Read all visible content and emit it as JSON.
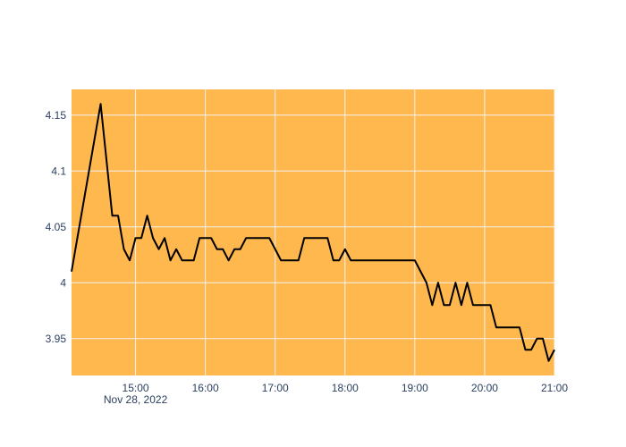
{
  "chart_data": {
    "type": "line",
    "title": "",
    "xlabel": "",
    "ylabel": "",
    "x_axis": {
      "type": "time",
      "range": [
        "2022-11-28 14:05",
        "2022-11-28 21:00"
      ],
      "ticks": [
        {
          "at": "15:00",
          "label": "15:00",
          "sublabel": "Nov 28, 2022"
        },
        {
          "at": "16:00",
          "label": "16:00"
        },
        {
          "at": "17:00",
          "label": "17:00"
        },
        {
          "at": "18:00",
          "label": "18:00"
        },
        {
          "at": "19:00",
          "label": "19:00"
        },
        {
          "at": "20:00",
          "label": "20:00"
        },
        {
          "at": "21:00",
          "label": "21:00"
        }
      ]
    },
    "y_axis": {
      "range": [
        3.917,
        4.173
      ],
      "ticks": [
        {
          "value": 3.95,
          "label": "3.95"
        },
        {
          "value": 4.0,
          "label": "4"
        },
        {
          "value": 4.05,
          "label": "4.05"
        },
        {
          "value": 4.1,
          "label": "4.1"
        },
        {
          "value": 4.15,
          "label": "4.15"
        }
      ]
    },
    "grid": true,
    "legend": "none",
    "colors": {
      "plot_background": "#ffb84d",
      "grid": "#f3f3f3",
      "line": "#000000",
      "axis_text": "#2a3f5f"
    },
    "series": [
      {
        "x": [
          "14:05",
          "14:30",
          "14:40",
          "14:45",
          "14:50",
          "14:55",
          "15:00",
          "15:05",
          "15:10",
          "15:15",
          "15:20",
          "15:25",
          "15:30",
          "15:35",
          "15:40",
          "15:45",
          "15:50",
          "15:55",
          "16:00",
          "16:05",
          "16:10",
          "16:15",
          "16:20",
          "16:25",
          "16:30",
          "16:35",
          "16:40",
          "16:45",
          "16:50",
          "16:55",
          "17:00",
          "17:05",
          "17:10",
          "17:15",
          "17:20",
          "17:25",
          "17:30",
          "17:35",
          "17:40",
          "17:45",
          "17:50",
          "17:55",
          "18:00",
          "18:05",
          "18:10",
          "18:15",
          "18:20",
          "18:25",
          "18:30",
          "18:35",
          "18:40",
          "18:45",
          "18:50",
          "18:55",
          "19:00",
          "19:05",
          "19:10",
          "19:15",
          "19:20",
          "19:25",
          "19:30",
          "19:35",
          "19:40",
          "19:45",
          "19:50",
          "19:55",
          "20:00",
          "20:05",
          "20:10",
          "20:15",
          "20:20",
          "20:25",
          "20:30",
          "20:35",
          "20:40",
          "20:45",
          "20:50",
          "20:55",
          "21:00"
        ],
        "y": [
          4.01,
          4.16,
          4.06,
          4.06,
          4.03,
          4.02,
          4.04,
          4.04,
          4.06,
          4.04,
          4.03,
          4.04,
          4.02,
          4.03,
          4.02,
          4.02,
          4.02,
          4.04,
          4.04,
          4.04,
          4.03,
          4.03,
          4.02,
          4.03,
          4.03,
          4.04,
          4.04,
          4.04,
          4.04,
          4.04,
          4.03,
          4.02,
          4.02,
          4.02,
          4.02,
          4.04,
          4.04,
          4.04,
          4.04,
          4.04,
          4.02,
          4.02,
          4.03,
          4.02,
          4.02,
          4.02,
          4.02,
          4.02,
          4.02,
          4.02,
          4.02,
          4.02,
          4.02,
          4.02,
          4.02,
          4.01,
          4.0,
          3.98,
          4.0,
          3.98,
          3.98,
          4.0,
          3.98,
          4.0,
          3.98,
          3.98,
          3.98,
          3.98,
          3.96,
          3.96,
          3.96,
          3.96,
          3.96,
          3.94,
          3.94,
          3.95,
          3.95,
          3.93,
          3.94
        ]
      }
    ]
  }
}
